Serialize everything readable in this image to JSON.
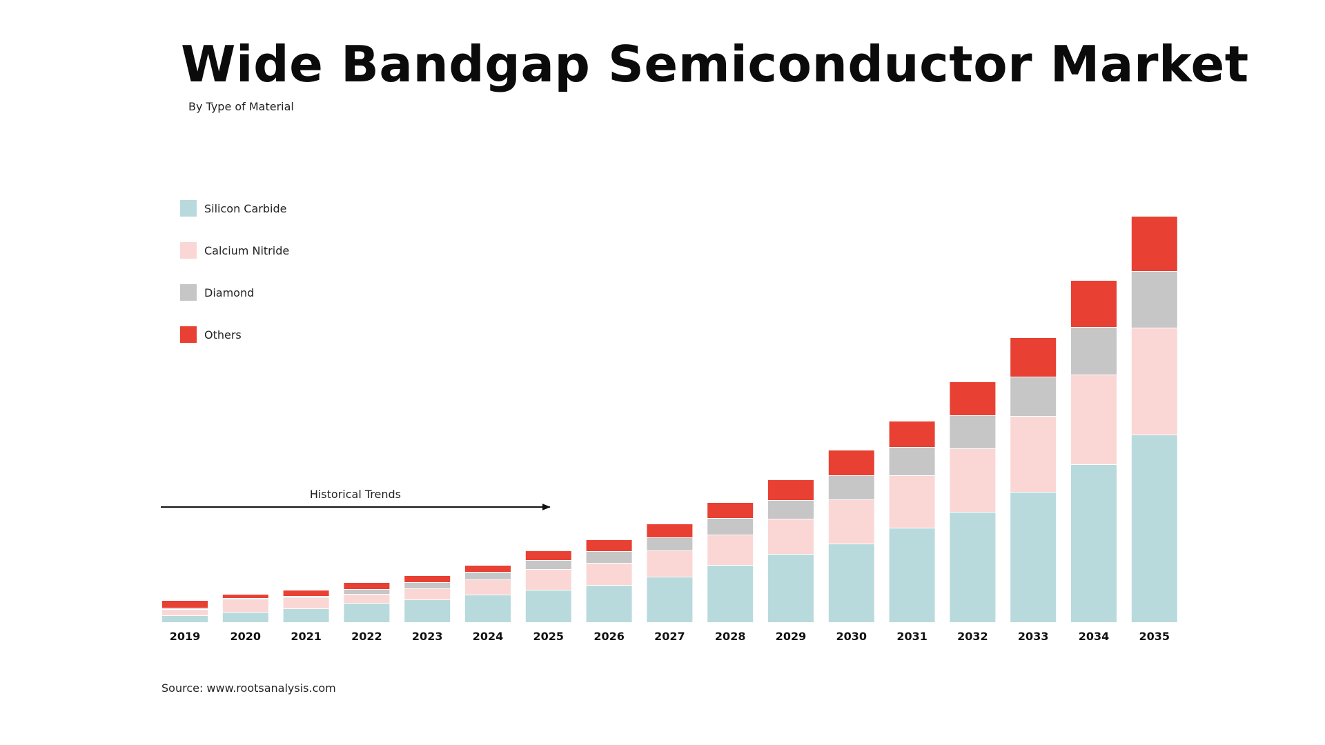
{
  "chart_data": {
    "type": "bar",
    "stacked": true,
    "title": "Wide Bandgap Semiconductor Market",
    "subtitle": "By Type of Material",
    "source": "Source: www.rootsanalysis.com",
    "xlabel": "",
    "ylabel": "",
    "grid": false,
    "legend_position": "top-left",
    "categories": [
      "2019",
      "2020",
      "2021",
      "2022",
      "2023",
      "2024",
      "2025",
      "2026",
      "2027",
      "2028",
      "2029",
      "2030",
      "2031",
      "2032",
      "2033",
      "2034",
      "2035"
    ],
    "series": [
      {
        "name": "Silicon Carbide",
        "color": "#b8dadc",
        "values": [
          9,
          14,
          19,
          27,
          32,
          39,
          46,
          53,
          65,
          82,
          98,
          113,
          136,
          159,
          188,
          228,
          271
        ]
      },
      {
        "name": "Calcium Nitride",
        "color": "#fad7d5",
        "values": [
          9,
          18,
          16,
          13,
          16,
          22,
          30,
          32,
          38,
          44,
          51,
          64,
          76,
          92,
          110,
          130,
          155
        ]
      },
      {
        "name": "Diamond",
        "color": "#c6c6c6",
        "values": [
          2,
          2,
          2,
          7,
          9,
          11,
          13,
          17,
          19,
          24,
          27,
          35,
          41,
          48,
          57,
          69,
          82
        ]
      },
      {
        "name": "Others",
        "color": "#e84033",
        "values": [
          11,
          6,
          9,
          10,
          10,
          10,
          14,
          17,
          20,
          23,
          30,
          37,
          38,
          49,
          57,
          68,
          80
        ]
      }
    ],
    "annotations": [
      {
        "text": "Historical Trends",
        "from": "2019",
        "to": "2025",
        "style": "arrow"
      }
    ]
  }
}
